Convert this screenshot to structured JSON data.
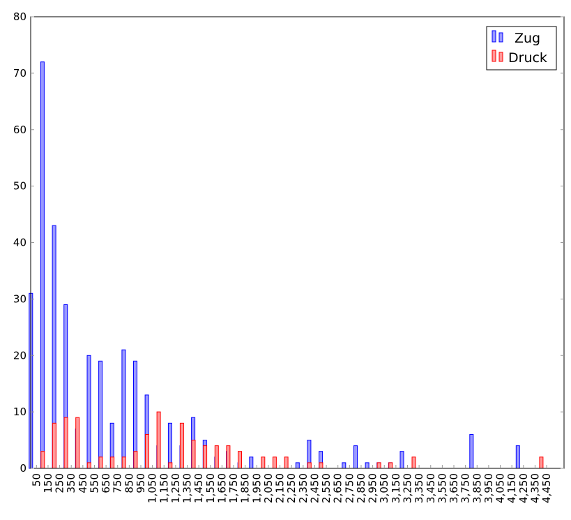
{
  "chart_data": {
    "type": "bar",
    "categories": [
      "50",
      "150",
      "250",
      "350",
      "450",
      "550",
      "650",
      "750",
      "850",
      "950",
      "1,050",
      "1,150",
      "1,250",
      "1,350",
      "1,450",
      "1,550",
      "1,650",
      "1,750",
      "1,850",
      "1,950",
      "2,050",
      "2,150",
      "2,250",
      "2,350",
      "2,450",
      "2,550",
      "2,650",
      "2,750",
      "2,850",
      "2,950",
      "3,050",
      "3,150",
      "3,250",
      "3,350",
      "3,450",
      "3,550",
      "3,650",
      "3,750",
      "3,850",
      "3,950",
      "4,050",
      "4,150",
      "4,250",
      "4,350",
      "4,450"
    ],
    "x_values": [
      50,
      150,
      250,
      350,
      450,
      550,
      650,
      750,
      850,
      950,
      1050,
      1150,
      1250,
      1350,
      1450,
      1550,
      1650,
      1750,
      1850,
      1950,
      2050,
      2150,
      2250,
      2350,
      2450,
      2550,
      2650,
      2750,
      2850,
      2950,
      3050,
      3150,
      3250,
      3350,
      3450,
      3550,
      3650,
      3750,
      3850,
      3950,
      4050,
      4150,
      4250,
      4350,
      4450
    ],
    "series": [
      {
        "name": "Zug",
        "color": "#0000ff",
        "fill": "#9999ff",
        "x": [
          50,
          150,
          250,
          350,
          450,
          550,
          650,
          750,
          850,
          950,
          1050,
          1150,
          1250,
          1350,
          1450,
          1550,
          1650,
          1750,
          1850,
          1950,
          2350,
          2450,
          2550,
          2750,
          2850,
          2950,
          3050,
          3150,
          3250,
          3850,
          4250
        ],
        "values": [
          31,
          72,
          43,
          29,
          7,
          20,
          19,
          8,
          21,
          19,
          13,
          4,
          8,
          4,
          9,
          5,
          2,
          3,
          1,
          2,
          1,
          5,
          3,
          1,
          4,
          1,
          1,
          1,
          3,
          6,
          4
        ]
      },
      {
        "name": "Druck",
        "color": "#ff0000",
        "fill": "#ff9999",
        "x": [
          50,
          150,
          250,
          350,
          450,
          550,
          650,
          750,
          850,
          950,
          1050,
          1150,
          1250,
          1350,
          1450,
          1550,
          1650,
          1750,
          1950,
          2050,
          2150,
          2350,
          2450,
          2950,
          3050,
          3250,
          4350
        ],
        "values": [
          3,
          8,
          9,
          9,
          1,
          2,
          2,
          2,
          3,
          6,
          10,
          1,
          8,
          5,
          4,
          4,
          4,
          3,
          2,
          2,
          2,
          1,
          1,
          1,
          1,
          2,
          2
        ]
      }
    ],
    "y_ticks": [
      "0",
      "10",
      "20",
      "30",
      "40",
      "50",
      "60",
      "70",
      "80"
    ],
    "ylim": [
      0,
      80
    ],
    "xlim": [
      0,
      4600
    ],
    "legend_position": "top-right",
    "grid": false
  }
}
